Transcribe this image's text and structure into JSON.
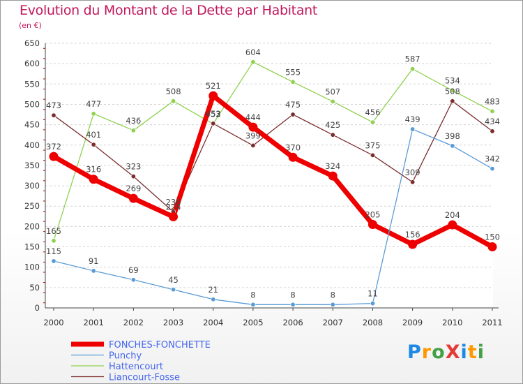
{
  "title": "Evolution du Montant de la Dette par Habitant",
  "subtitle": "(en €)",
  "logo": {
    "text": "ProXiti",
    "colors": [
      "#1e88e5",
      "#ff9800",
      "#43a047",
      "#e53935",
      "#1e88e5",
      "#ff9800",
      "#43a047"
    ]
  },
  "chart_data": {
    "type": "line",
    "x": [
      "2000",
      "2001",
      "2002",
      "2003",
      "2004",
      "2005",
      "2006",
      "2007",
      "2008",
      "2009",
      "2010",
      "2011"
    ],
    "ylim": [
      0,
      650
    ],
    "yticks": [
      0,
      50,
      100,
      150,
      200,
      250,
      300,
      350,
      400,
      450,
      500,
      550,
      600,
      650
    ],
    "grid": "horizontal dashed",
    "legend_position": "bottom-left",
    "series": [
      {
        "name": "Punchy",
        "color": "#5b9bd5",
        "width": 1.3,
        "values": [
          115,
          91,
          69,
          45,
          21,
          8,
          8,
          8,
          11,
          439,
          398,
          342
        ]
      },
      {
        "name": "Hattencourt",
        "color": "#8fd14f",
        "width": 1.3,
        "values": [
          165,
          477,
          436,
          508,
          452,
          604,
          555,
          507,
          456,
          587,
          534,
          483
        ]
      },
      {
        "name": "Liancourt-Fosse",
        "color": "#7b2d2d",
        "width": 1.3,
        "values": [
          473,
          401,
          323,
          236,
          453,
          399,
          475,
          425,
          375,
          309,
          508,
          434
        ]
      },
      {
        "name": "FONCHES-FONCHETTE",
        "color": "#ee0000",
        "width": 7,
        "values": [
          372,
          316,
          269,
          224,
          521,
          444,
          370,
          324,
          205,
          156,
          204,
          150
        ]
      }
    ],
    "legend_order": [
      "FONCHES-FONCHETTE",
      "Punchy",
      "Hattencourt",
      "Liancourt-Fosse"
    ]
  }
}
